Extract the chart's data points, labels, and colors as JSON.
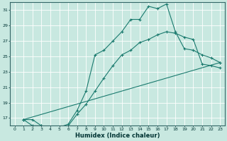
{
  "xlabel": "Humidex (Indice chaleur)",
  "bg_color": "#c8e8e0",
  "grid_color": "#ffffff",
  "line_color": "#1a7a6e",
  "xlim": [
    -0.5,
    23.5
  ],
  "ylim": [
    16,
    32
  ],
  "xticks": [
    0,
    1,
    2,
    3,
    4,
    5,
    6,
    7,
    8,
    9,
    10,
    11,
    12,
    13,
    14,
    15,
    16,
    17,
    18,
    19,
    20,
    21,
    22,
    23
  ],
  "yticks": [
    17,
    19,
    21,
    23,
    25,
    27,
    29,
    31
  ],
  "line1_x": [
    1,
    2,
    3,
    4,
    5,
    6,
    7,
    8,
    9,
    10,
    11,
    12,
    13,
    14,
    15,
    16,
    17,
    18,
    19,
    20,
    21,
    22,
    23
  ],
  "line1_y": [
    16.8,
    16.8,
    16.0,
    15.8,
    15.8,
    16.2,
    18.0,
    20.5,
    25.2,
    25.8,
    27.0,
    28.2,
    29.8,
    29.8,
    31.5,
    31.2,
    31.8,
    28.2,
    26.0,
    25.8,
    25.2,
    24.8,
    24.2
  ],
  "line2_x": [
    1,
    2,
    3,
    4,
    5,
    6,
    7,
    8,
    9,
    10,
    11,
    12,
    13,
    14,
    15,
    16,
    17,
    18,
    19,
    20,
    21,
    22,
    23
  ],
  "line2_y": [
    16.8,
    16.0,
    16.0,
    15.8,
    15.8,
    16.0,
    17.5,
    18.8,
    20.5,
    22.2,
    23.8,
    25.2,
    25.8,
    26.8,
    27.2,
    27.8,
    28.2,
    28.0,
    27.5,
    27.2,
    24.0,
    23.8,
    23.5
  ],
  "line3_x": [
    1,
    23
  ],
  "line3_y": [
    16.8,
    24.2
  ]
}
